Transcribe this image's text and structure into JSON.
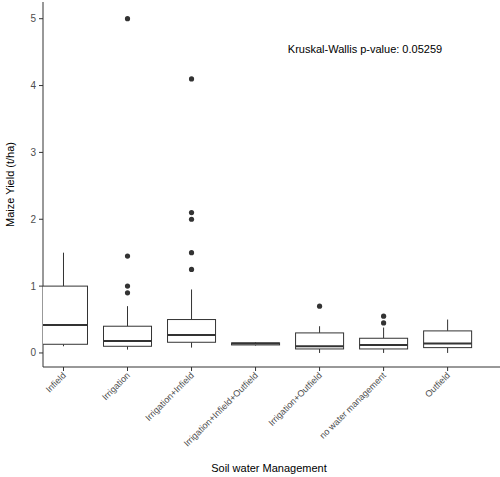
{
  "chart_data": {
    "type": "box",
    "annotation": "Kruskal-Wallis p-value: 0.05259",
    "x_label": "Soil water Management",
    "y_label": "Maize Yield (t/ha)",
    "categories": [
      "Infield",
      "Irrigation",
      "Irrigation+Infield",
      "Irrigation+Infield+Outfield",
      "Irrigation+Outfield",
      "no water management",
      "Outfield"
    ],
    "values": [
      {
        "min": 0.1,
        "q1": 0.13,
        "median": 0.42,
        "q3": 1.0,
        "max": 1.5,
        "outliers": []
      },
      {
        "min": 0.05,
        "q1": 0.1,
        "median": 0.18,
        "q3": 0.4,
        "max": 0.7,
        "outliers": [
          5.0,
          1.45,
          1.0,
          0.9
        ]
      },
      {
        "min": 0.08,
        "q1": 0.16,
        "median": 0.27,
        "q3": 0.5,
        "max": 0.95,
        "outliers": [
          4.1,
          2.1,
          2.0,
          1.5,
          1.25
        ]
      },
      {
        "min": 0.11,
        "q1": 0.12,
        "median": 0.14,
        "q3": 0.15,
        "max": 0.16,
        "outliers": []
      },
      {
        "min": 0.0,
        "q1": 0.06,
        "median": 0.1,
        "q3": 0.3,
        "max": 0.4,
        "outliers": [
          0.7
        ]
      },
      {
        "min": 0.0,
        "q1": 0.06,
        "median": 0.12,
        "q3": 0.22,
        "max": 0.38,
        "outliers": [
          0.55,
          0.45
        ]
      },
      {
        "min": 0.0,
        "q1": 0.08,
        "median": 0.14,
        "q3": 0.33,
        "max": 0.5,
        "outliers": []
      }
    ],
    "color": "#333333",
    "ylim": [
      -0.21,
      5.25
    ],
    "yticks": [
      0,
      1,
      2,
      3,
      4,
      5
    ],
    "grid": false
  }
}
